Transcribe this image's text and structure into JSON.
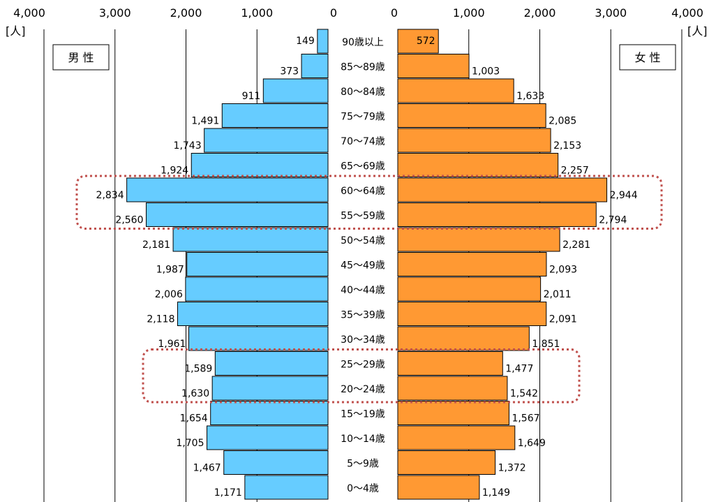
{
  "chart_data": {
    "type": "bar",
    "orientation": "horizontal-pyramid",
    "categories": [
      "90歳以上",
      "85～89歳",
      "80～84歳",
      "75～79歳",
      "70～74歳",
      "65～69歳",
      "60～64歳",
      "55～59歳",
      "50～54歳",
      "45～49歳",
      "40～44歳",
      "35～39歳",
      "30～34歳",
      "25～29歳",
      "20～24歳",
      "15～19歳",
      "10～14歳",
      "5～9歳",
      "0～4歳"
    ],
    "series": [
      {
        "name": "男 性",
        "color": "#66CCFF",
        "side": "left",
        "values": [
          149,
          373,
          911,
          1491,
          1743,
          1924,
          2834,
          2560,
          2181,
          1987,
          2006,
          2118,
          1961,
          1589,
          1630,
          1654,
          1705,
          1467,
          1171
        ],
        "labels": [
          "149",
          "373",
          "911",
          "1,491",
          "1,743",
          "1,924",
          "2,834",
          "2,560",
          "2,181",
          "1,987",
          "2,006",
          "2,118",
          "1,961",
          "1,589",
          "1,630",
          "1,654",
          "1,705",
          "1,467",
          "1,171"
        ]
      },
      {
        "name": "女 性",
        "color": "#FF9933",
        "side": "right",
        "values": [
          572,
          1003,
          1633,
          2085,
          2153,
          2257,
          2944,
          2794,
          2281,
          2093,
          2011,
          2091,
          1851,
          1477,
          1542,
          1567,
          1649,
          1372,
          1149
        ],
        "labels": [
          "572",
          "1,003",
          "1,633",
          "2,085",
          "2,153",
          "2,257",
          "2,944",
          "2,794",
          "2,281",
          "2,093",
          "2,011",
          "2,091",
          "1,851",
          "1,477",
          "1,542",
          "1,567",
          "1,649",
          "1,372",
          "1,149"
        ]
      }
    ],
    "axis": {
      "range": [
        0,
        4000
      ],
      "ticks": [
        0,
        1000,
        2000,
        3000,
        4000
      ],
      "tick_labels": [
        "0",
        "1,000",
        "2,000",
        "3,000",
        "4,000"
      ],
      "unit": "[人]"
    },
    "grid": true,
    "highlights": [
      {
        "categories": [
          "60～64歳",
          "55～59歳"
        ],
        "style": "dotted",
        "color": "#C0504D"
      },
      {
        "categories": [
          "25～29歳",
          "20～24歳"
        ],
        "style": "dotted",
        "color": "#C0504D"
      }
    ]
  }
}
